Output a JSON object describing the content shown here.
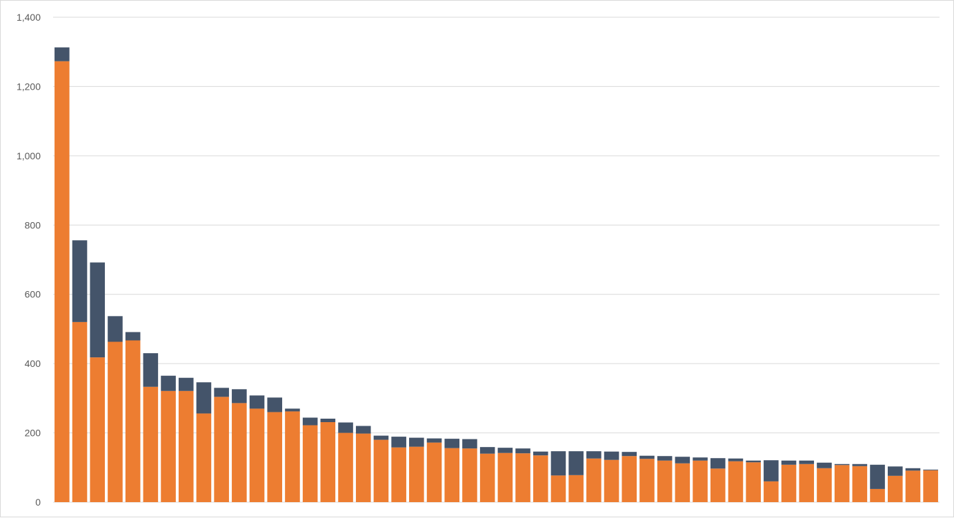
{
  "chart_data": {
    "type": "bar",
    "stacked": true,
    "title": "",
    "xlabel": "",
    "ylabel": "",
    "ylim": [
      0,
      1400
    ],
    "yticks": [
      0,
      200,
      400,
      600,
      800,
      1000,
      1200,
      1400
    ],
    "ytick_labels": [
      "0",
      "200",
      "400",
      "600",
      "800",
      "1,000",
      "1,200",
      "1,400"
    ],
    "grid": true,
    "legend": "none",
    "colors": {
      "lower": "#ED7D31",
      "upper": "#44546A",
      "grid": "#d9d9d9"
    },
    "series": [
      {
        "values": [
          1273,
          520,
          418,
          463,
          467,
          333,
          321,
          321,
          256,
          304,
          286,
          270,
          260,
          262,
          222,
          231,
          200,
          198,
          180,
          158,
          160,
          172,
          156,
          155,
          140,
          142,
          141,
          135,
          77,
          78,
          126,
          122,
          133,
          125,
          120,
          112,
          120,
          97,
          118,
          115,
          60,
          108,
          110,
          98,
          107,
          104,
          38,
          76,
          91,
          92
        ]
      },
      {
        "values": [
          40,
          236,
          274,
          74,
          24,
          97,
          44,
          38,
          90,
          26,
          40,
          38,
          42,
          8,
          22,
          10,
          30,
          22,
          12,
          31,
          26,
          12,
          27,
          27,
          19,
          15,
          14,
          11,
          70,
          69,
          21,
          24,
          12,
          9,
          13,
          19,
          9,
          30,
          8,
          5,
          61,
          12,
          10,
          16,
          3,
          6,
          70,
          27,
          7,
          2
        ]
      }
    ]
  }
}
